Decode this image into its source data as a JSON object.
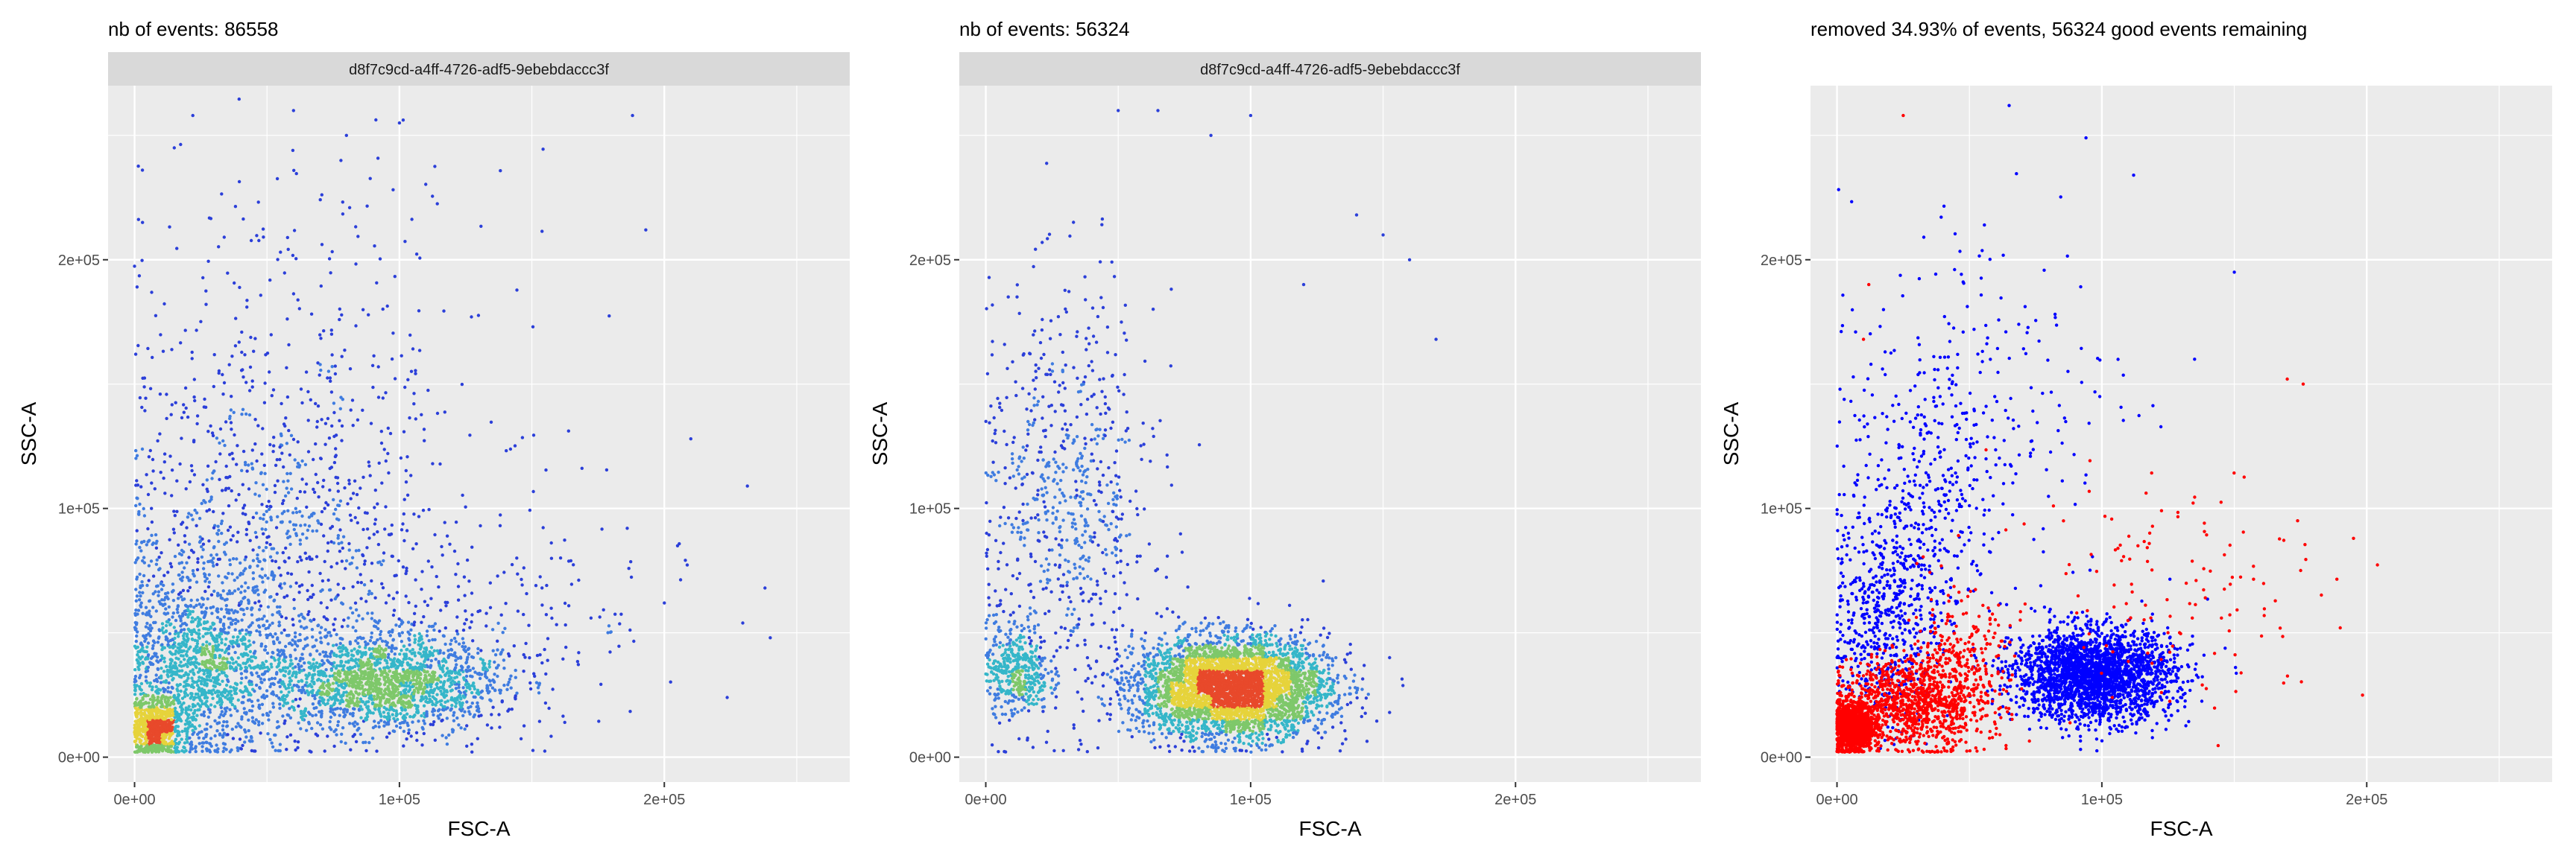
{
  "chart_data": [
    {
      "type": "scatter",
      "title": "nb of events: 86558",
      "facet_label": "d8f7c9cd-a4ff-4726-adf5-9ebebdaccc3f",
      "xlabel": "FSC-A",
      "ylabel": "SSC-A",
      "xlim": [
        -10000,
        270000
      ],
      "ylim": [
        -10000,
        270000
      ],
      "x_ticks": [
        0,
        100000,
        200000
      ],
      "x_tick_labels": [
        "0e+00",
        "1e+05",
        "2e+05"
      ],
      "y_ticks": [
        0,
        100000,
        200000
      ],
      "y_tick_labels": [
        "0e+00",
        "1e+05",
        "2e+05"
      ],
      "grid": true,
      "color_scale": "density (blue-cyan-green-yellow-red)",
      "density_colors": [
        "#2b3fd9",
        "#3f7ce0",
        "#35b6c9",
        "#7ec86a",
        "#e6d33b",
        "#e8492b"
      ],
      "populations": [
        {
          "center": [
            8000,
            12000
          ],
          "spread": [
            5000,
            6000
          ],
          "weight": 0.12
        },
        {
          "center": [
            25000,
            35000
          ],
          "spread": [
            15000,
            18000
          ],
          "weight": 0.25
        },
        {
          "center": [
            95000,
            30000
          ],
          "spread": [
            22000,
            10000
          ],
          "weight": 0.35
        },
        {
          "center": [
            50000,
            75000
          ],
          "spread": [
            30000,
            35000
          ],
          "weight": 0.18
        },
        {
          "center": [
            60000,
            150000
          ],
          "spread": [
            40000,
            45000
          ],
          "weight": 0.07
        },
        {
          "center": [
            140000,
            60000
          ],
          "spread": [
            35000,
            25000
          ],
          "weight": 0.03
        }
      ],
      "outliers": [
        [
          60000,
          260000
        ],
        [
          22000,
          258000
        ],
        [
          100000,
          255000
        ],
        [
          188000,
          258000
        ],
        [
          193000,
          212000
        ],
        [
          210000,
          128000
        ],
        [
          238000,
          68000
        ],
        [
          240000,
          48000
        ],
        [
          200000,
          62000
        ],
        [
          205000,
          85000
        ],
        [
          15000,
          245000
        ],
        [
          3000,
          215000
        ],
        [
          80000,
          250000
        ]
      ]
    },
    {
      "type": "scatter",
      "title": "nb of events: 56324",
      "facet_label": "d8f7c9cd-a4ff-4726-adf5-9ebebdaccc3f",
      "xlabel": "FSC-A",
      "ylabel": "SSC-A",
      "xlim": [
        -10000,
        270000
      ],
      "ylim": [
        -10000,
        270000
      ],
      "x_ticks": [
        0,
        100000,
        200000
      ],
      "x_tick_labels": [
        "0e+00",
        "1e+05",
        "2e+05"
      ],
      "y_ticks": [
        0,
        100000,
        200000
      ],
      "y_tick_labels": [
        "0e+00",
        "1e+05",
        "2e+05"
      ],
      "grid": true,
      "color_scale": "density (blue-cyan-green-yellow-red)",
      "density_colors": [
        "#2b3fd9",
        "#3f7ce0",
        "#35b6c9",
        "#7ec86a",
        "#e6d33b",
        "#e8492b"
      ],
      "populations": [
        {
          "center": [
            93000,
            28000
          ],
          "spread": [
            18000,
            10000
          ],
          "weight": 0.78
        },
        {
          "center": [
            12000,
            35000
          ],
          "spread": [
            6000,
            9000
          ],
          "weight": 0.08
        },
        {
          "center": [
            30000,
            100000
          ],
          "spread": [
            17000,
            42000
          ],
          "weight": 0.14
        }
      ],
      "outliers": [
        [
          50000,
          260000
        ],
        [
          65000,
          260000
        ],
        [
          100000,
          258000
        ],
        [
          85000,
          250000
        ],
        [
          150000,
          210000
        ],
        [
          160000,
          200000
        ],
        [
          170000,
          168000
        ],
        [
          140000,
          218000
        ],
        [
          120000,
          190000
        ]
      ]
    },
    {
      "type": "scatter",
      "title": "removed 34.93% of events, 56324 good events remaining",
      "xlabel": "FSC-A",
      "ylabel": "SSC-A",
      "xlim": [
        -10000,
        270000
      ],
      "ylim": [
        -10000,
        270000
      ],
      "x_ticks": [
        0,
        100000,
        200000
      ],
      "x_tick_labels": [
        "0e+00",
        "1e+05",
        "2e+05"
      ],
      "y_ticks": [
        0,
        100000,
        200000
      ],
      "y_tick_labels": [
        "0e+00",
        "1e+05",
        "2e+05"
      ],
      "grid": true,
      "series": [
        {
          "color": "#0000ff",
          "populations": [
            {
              "center": [
                97000,
                33000
              ],
              "spread": [
                15000,
                9000
              ],
              "weight": 0.7
            },
            {
              "center": [
                18000,
                55000
              ],
              "spread": [
                10000,
                22000
              ],
              "weight": 0.15
            },
            {
              "center": [
                35000,
                100000
              ],
              "spread": [
                15000,
                30000
              ],
              "weight": 0.1
            },
            {
              "center": [
                55000,
                150000
              ],
              "spread": [
                30000,
                40000
              ],
              "weight": 0.05
            }
          ],
          "outliers": [
            [
              65000,
              262000
            ],
            [
              94000,
              249000
            ],
            [
              112000,
              234000
            ],
            [
              135000,
              160000
            ],
            [
              150000,
              195000
            ]
          ]
        },
        {
          "color": "#ff0000",
          "populations": [
            {
              "center": [
                6000,
                12000
              ],
              "spread": [
                4000,
                5000
              ],
              "weight": 0.45
            },
            {
              "center": [
                28000,
                22000
              ],
              "spread": [
                14000,
                9000
              ],
              "weight": 0.4
            },
            {
              "center": [
                45000,
                35000
              ],
              "spread": [
                10000,
                15000
              ],
              "weight": 0.1
            },
            {
              "center": [
                130000,
                70000
              ],
              "spread": [
                35000,
                25000
              ],
              "weight": 0.05
            }
          ],
          "outliers": [
            [
              25000,
              258000
            ],
            [
              195000,
              88000
            ],
            [
              190000,
              52000
            ],
            [
              176000,
              150000
            ],
            [
              12000,
              190000
            ],
            [
              10000,
              168000
            ],
            [
              170000,
              152000
            ]
          ]
        }
      ]
    }
  ]
}
